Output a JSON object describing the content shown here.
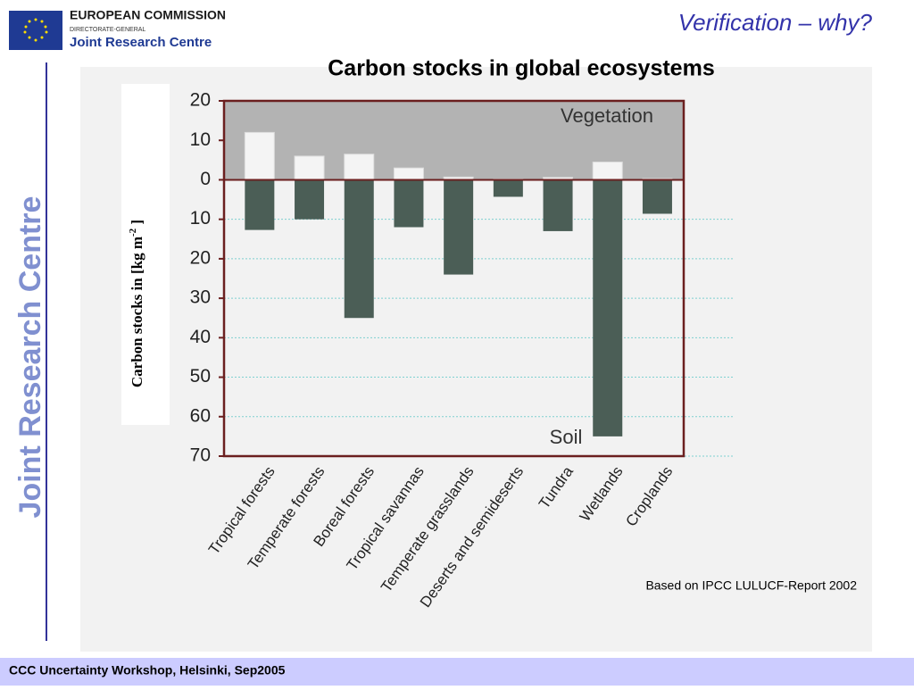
{
  "header": {
    "org": "EUROPEAN COMMISSION",
    "dg": "DIRECTORATE-GENERAL",
    "centre": "Joint Research Centre",
    "slide_title": "Verification – why?",
    "side_text": "Joint Research Centre"
  },
  "chart_data": {
    "type": "bar",
    "title": "Carbon stocks in global ecosystems",
    "y_label": "Carbon stocks in [kg m",
    "y_label_sup": "-2",
    "y_label_end": " ]",
    "categories": [
      "Tropical forests",
      "Temperate forests",
      "Boreal forests",
      "Tropical savannas",
      "Temperate grasslands",
      "Deserts and semideserts",
      "Tundra",
      "Wetlands",
      "Croplands"
    ],
    "series": [
      {
        "name": "Vegetation",
        "color": "#f4f4f4",
        "values": [
          12,
          6,
          6.5,
          3,
          0.7,
          0.2,
          0.6,
          4.5,
          0.3
        ]
      },
      {
        "name": "Soil",
        "color": "#4b5e56",
        "values": [
          -12.7,
          -10,
          -35,
          -12,
          -24,
          -4.3,
          -13,
          -65,
          -8.6
        ]
      }
    ],
    "ylim": [
      -70,
      20
    ],
    "yticks": [
      20,
      10,
      0,
      {
        "value": -10,
        "label": "10"
      },
      {
        "value": -20,
        "label": "20"
      },
      {
        "value": -30,
        "label": "30"
      },
      {
        "value": -40,
        "label": "40"
      },
      {
        "value": -50,
        "label": "50"
      },
      {
        "value": -60,
        "label": "60"
      },
      {
        "value": -70,
        "label": "70"
      }
    ],
    "grid": true
  },
  "note": "Based on  IPCC LULUCF-Report 2002",
  "footer": "CCC Uncertainty Workshop, Helsinki, Sep2005"
}
